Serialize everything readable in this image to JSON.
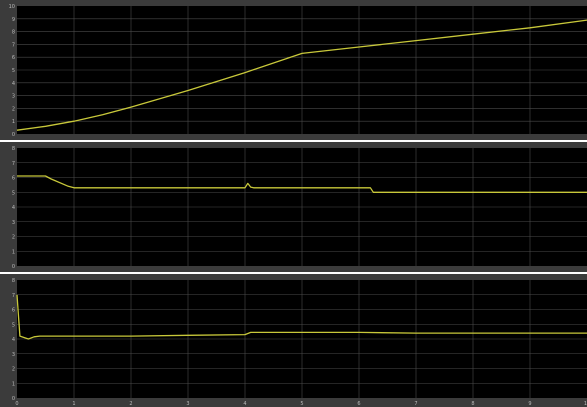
{
  "colors": {
    "background": "#ffffff",
    "panel_border": "#3b3b3b",
    "plot_background": "#000000",
    "grid": "#4a4a4a",
    "trace": "#c8c83a",
    "tick_text": "#b9b9b9"
  },
  "chart_data": [
    {
      "type": "line",
      "title": "",
      "xlabel": "",
      "ylabel": "",
      "grid": true,
      "xlim": [
        0,
        10
      ],
      "ylim": [
        0,
        10
      ],
      "y_ticks": [
        0,
        1,
        2,
        3,
        4,
        5,
        6,
        7,
        8,
        9,
        10
      ],
      "series": [
        {
          "x": [
            0,
            0.5,
            1,
            1.5,
            2,
            3,
            4,
            5,
            6,
            7,
            8,
            9,
            10
          ],
          "y": [
            0.3,
            0.6,
            1.0,
            1.5,
            2.1,
            3.4,
            4.8,
            6.3,
            6.8,
            7.3,
            7.8,
            8.3,
            8.9
          ]
        }
      ]
    },
    {
      "type": "line",
      "title": "",
      "xlabel": "",
      "ylabel": "",
      "grid": true,
      "xlim": [
        0,
        10
      ],
      "ylim": [
        0,
        8
      ],
      "y_ticks": [
        0,
        1,
        2,
        3,
        4,
        5,
        6,
        7,
        8
      ],
      "series": [
        {
          "x": [
            0,
            0.5,
            0.6,
            0.9,
            1.0,
            4.0,
            4.05,
            4.1,
            4.15,
            6.2,
            6.25,
            10
          ],
          "y": [
            6.1,
            6.1,
            5.9,
            5.4,
            5.3,
            5.3,
            5.6,
            5.35,
            5.3,
            5.3,
            5.0,
            5.0
          ]
        }
      ]
    },
    {
      "type": "line",
      "title": "",
      "xlabel": "",
      "ylabel": "",
      "grid": true,
      "xlim": [
        0,
        10
      ],
      "ylim": [
        0,
        8
      ],
      "x_ticks": [
        0,
        1,
        2,
        3,
        4,
        5,
        6,
        7,
        8,
        9,
        10
      ],
      "y_ticks": [
        0,
        1,
        2,
        3,
        4,
        5,
        6,
        7,
        8
      ],
      "series": [
        {
          "x": [
            0,
            0.05,
            0.2,
            0.3,
            0.4,
            1,
            2,
            3,
            4,
            4.1,
            5,
            6,
            7,
            8,
            9,
            10
          ],
          "y": [
            7.0,
            4.2,
            4.0,
            4.15,
            4.2,
            4.2,
            4.2,
            4.25,
            4.3,
            4.45,
            4.45,
            4.45,
            4.4,
            4.4,
            4.4,
            4.4
          ]
        }
      ]
    }
  ]
}
